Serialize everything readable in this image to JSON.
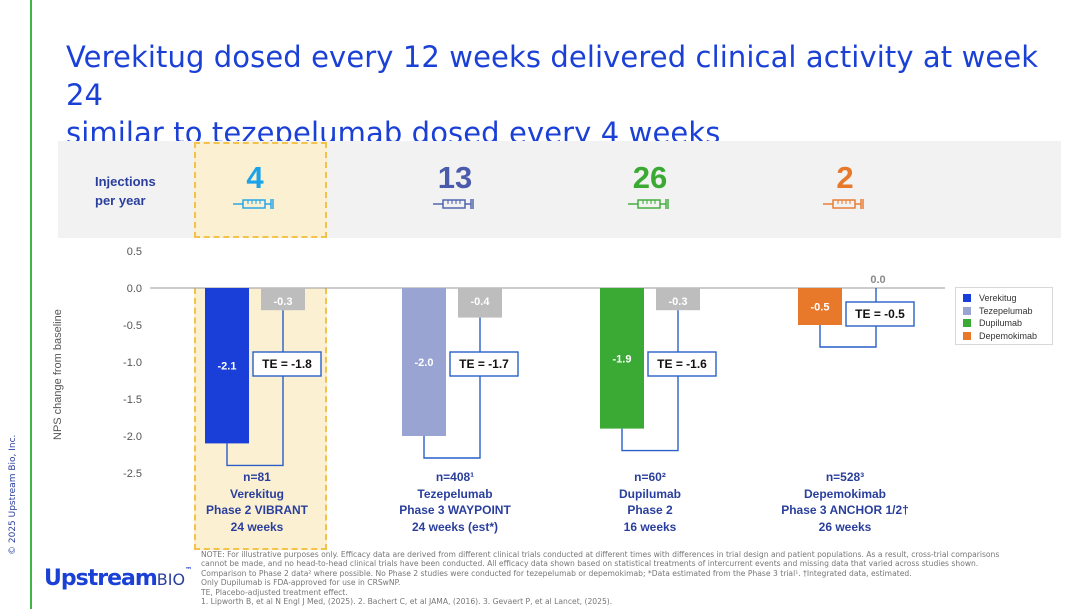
{
  "title_line1": "Verekitug dosed every 12 weeks delivered clinical activity at week 24",
  "title_line2": "similar to tezepelumab dosed every 4 weeks",
  "copyright": "© 2025 Upstream Bio, Inc.",
  "injections": {
    "label_line1": "Injections",
    "label_line2": "per year",
    "items": [
      {
        "value": "4",
        "color": "#1aa3e8"
      },
      {
        "value": "13",
        "color": "#4a5bab"
      },
      {
        "value": "26",
        "color": "#3aaa35"
      },
      {
        "value": "2",
        "color": "#e8782a"
      }
    ]
  },
  "colors": {
    "placebo": "#bdbdbd",
    "bracket": "#2a5fc9",
    "highlight_border": "#f2c24a"
  },
  "chart_data": {
    "type": "bar",
    "ylabel": "NPS change from baseline",
    "ylim": [
      -2.5,
      0.5
    ],
    "yticks": [
      "0.5",
      "0.0",
      "-0.5",
      "-1.0",
      "-1.5",
      "-2.0",
      "-2.5"
    ],
    "groups": [
      {
        "drug": "Verekitug",
        "color": "#1a3ed8",
        "active": -2.1,
        "active_label": "-2.1",
        "placebo": -0.3,
        "placebo_label": "-0.3",
        "te_label": "TE = -1.8",
        "lines": [
          "n=81",
          "Verekitug",
          "Phase 2 VIBRANT",
          "24 weeks"
        ]
      },
      {
        "drug": "Tezepelumab",
        "color": "#99a4d2",
        "active": -2.0,
        "active_label": "-2.0",
        "placebo": -0.4,
        "placebo_label": "-0.4",
        "te_label": "TE = -1.7",
        "lines": [
          "n=408¹",
          "Tezepelumab",
          "Phase 3 WAYPOINT",
          "24 weeks (est*)"
        ]
      },
      {
        "drug": "Dupilumab",
        "color": "#3aaa35",
        "active": -1.9,
        "active_label": "-1.9",
        "placebo": -0.3,
        "placebo_label": "-0.3",
        "te_label": "TE = -1.6",
        "lines": [
          "n=60²",
          "Dupilumab",
          "Phase 2",
          "16 weeks"
        ]
      },
      {
        "drug": "Depemokimab",
        "color": "#e8782a",
        "active": -0.5,
        "active_label": "-0.5",
        "placebo": 0.0,
        "placebo_label": "0.0",
        "te_label": "TE = -0.5",
        "lines": [
          "n=528³",
          "Depemokimab",
          "Phase 3 ANCHOR 1/2†",
          "26 weeks"
        ]
      }
    ],
    "legend": [
      "Verekitug",
      "Tezepelumab",
      "Dupilumab",
      "Depemokimab"
    ]
  },
  "notes": [
    "NOTE: For illustrative purposes only. Efficacy data are derived from different clinical trials conducted at different times with differences in trial design and patient populations. As a result, cross-trial comparisons",
    "cannot be made, and no head-to-head clinical trials have been conducted. All efficacy data shown based on statistical treatments of intercurrent events and missing data that varied across studies shown.",
    "Comparison to Phase 2 data² where possible. No Phase 2 studies were conducted for tezepelumab or depemokimab; *Data estimated from the Phase 3 trial¹. †Integrated data, estimated.",
    "Only Dupilumab is FDA-approved for use in CRSwNP.",
    "TE, Placebo-adjusted treatment effect.",
    "1. Lipworth B, et al N Engl J Med, (2025). 2. Bachert C, et al JAMA, (2016). 3. Gevaert P, et al Lancet, (2025)."
  ],
  "logo": {
    "main": "Upstream",
    "suffix": "BIO",
    "tm": "™"
  }
}
